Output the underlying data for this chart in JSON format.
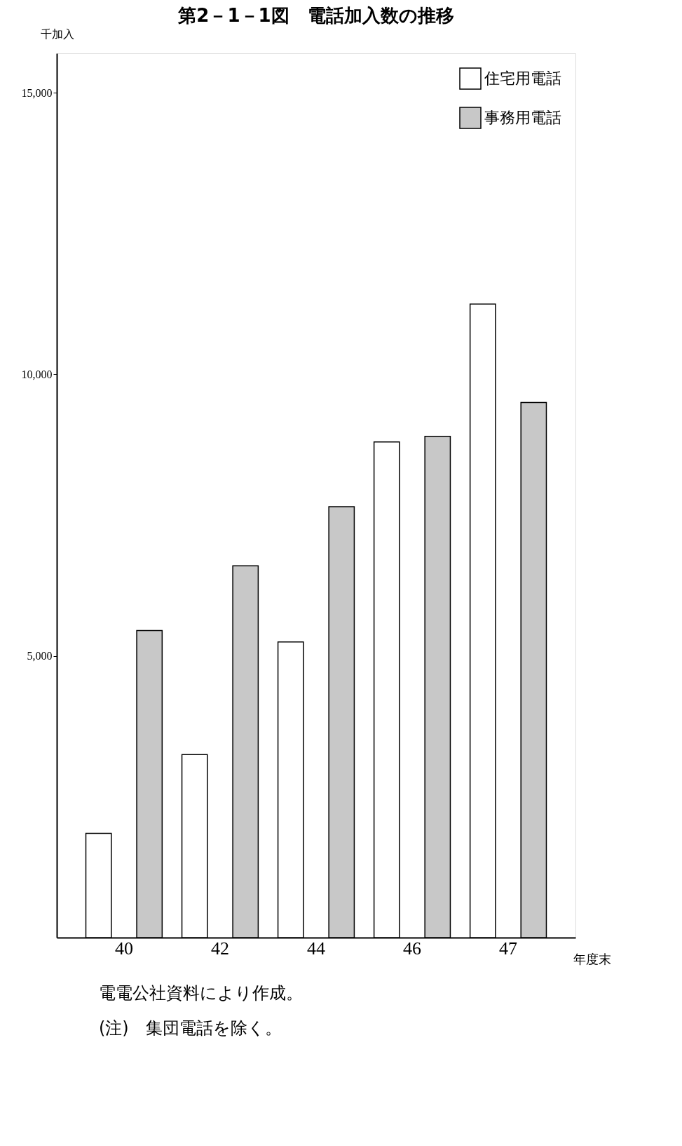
{
  "chart_data": {
    "type": "bar",
    "title": "第2－1－1図　電話加入数の推移",
    "xlabel": "年度末",
    "ylabel": "千加入",
    "categories": [
      "40",
      "42",
      "44",
      "46",
      "47"
    ],
    "series": [
      {
        "name": "住宅用電話",
        "color": "#ffffff",
        "values": [
          1850,
          3250,
          5250,
          8800,
          11250
        ]
      },
      {
        "name": "事務用電話",
        "color": "#c8c8c8",
        "values": [
          5450,
          6600,
          7650,
          8900,
          9500
        ]
      }
    ],
    "ylim": [
      0,
      15700
    ],
    "yticks": [
      {
        "value": 5000,
        "label": "5,000"
      },
      {
        "value": 10000,
        "label": "10,000"
      },
      {
        "value": 15000,
        "label": "15,000"
      }
    ],
    "grid": false,
    "legend": "top right",
    "annotations": [
      "電電公社資料により作成。",
      "(注)　集団電話を除く。"
    ]
  }
}
